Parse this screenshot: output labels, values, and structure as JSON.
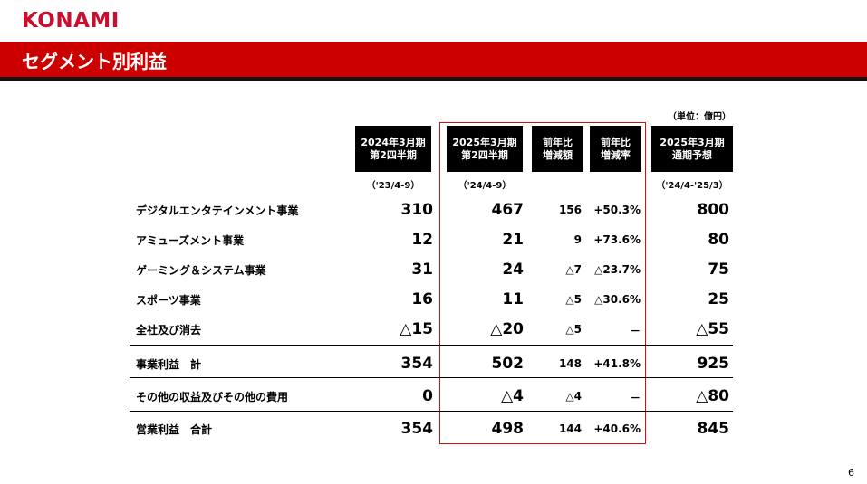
{
  "logo": "KONAMI",
  "title": "セグメント別利益",
  "unit": "（単位：億円）",
  "columns": [
    {
      "l1": "2024年3月期",
      "l2": "第2四半期",
      "period": "（'23/4-9）"
    },
    {
      "l1": "2025年3月期",
      "l2": "第2四半期",
      "period": "（'24/4-9）"
    },
    {
      "l1": "前年比",
      "l2": "増減額",
      "period": ""
    },
    {
      "l1": "前年比",
      "l2": "増減率",
      "period": ""
    },
    {
      "l1": "2025年3月期",
      "l2": "通期予想",
      "period": "（'24/4-'25/3）"
    }
  ],
  "rows": [
    {
      "label": "デジタルエンタテインメント事業",
      "v": [
        "310",
        "467",
        "156",
        "+50.3%",
        "800"
      ]
    },
    {
      "label": "アミューズメント事業",
      "v": [
        "12",
        "21",
        "9",
        "+73.6%",
        "80"
      ]
    },
    {
      "label": "ゲーミング＆システム事業",
      "v": [
        "31",
        "24",
        "△7",
        "△23.7%",
        "75"
      ]
    },
    {
      "label": "スポーツ事業",
      "v": [
        "16",
        "11",
        "△5",
        "△30.6%",
        "25"
      ]
    },
    {
      "label": "全社及び消去",
      "v": [
        "△15",
        "△20",
        "△5",
        "－",
        "△55"
      ]
    },
    {
      "label": "事業利益　計",
      "v": [
        "354",
        "502",
        "148",
        "+41.8%",
        "925"
      ]
    },
    {
      "label": "その他の収益及びその他の費用",
      "v": [
        "0",
        "△4",
        "△4",
        "－",
        "△80"
      ]
    },
    {
      "label": "営業利益　合計",
      "v": [
        "354",
        "498",
        "144",
        "+40.6%",
        "845"
      ]
    }
  ],
  "page_number": "6",
  "colors": {
    "brand_red": "#cc0000",
    "highlight_border": "#d01010"
  }
}
